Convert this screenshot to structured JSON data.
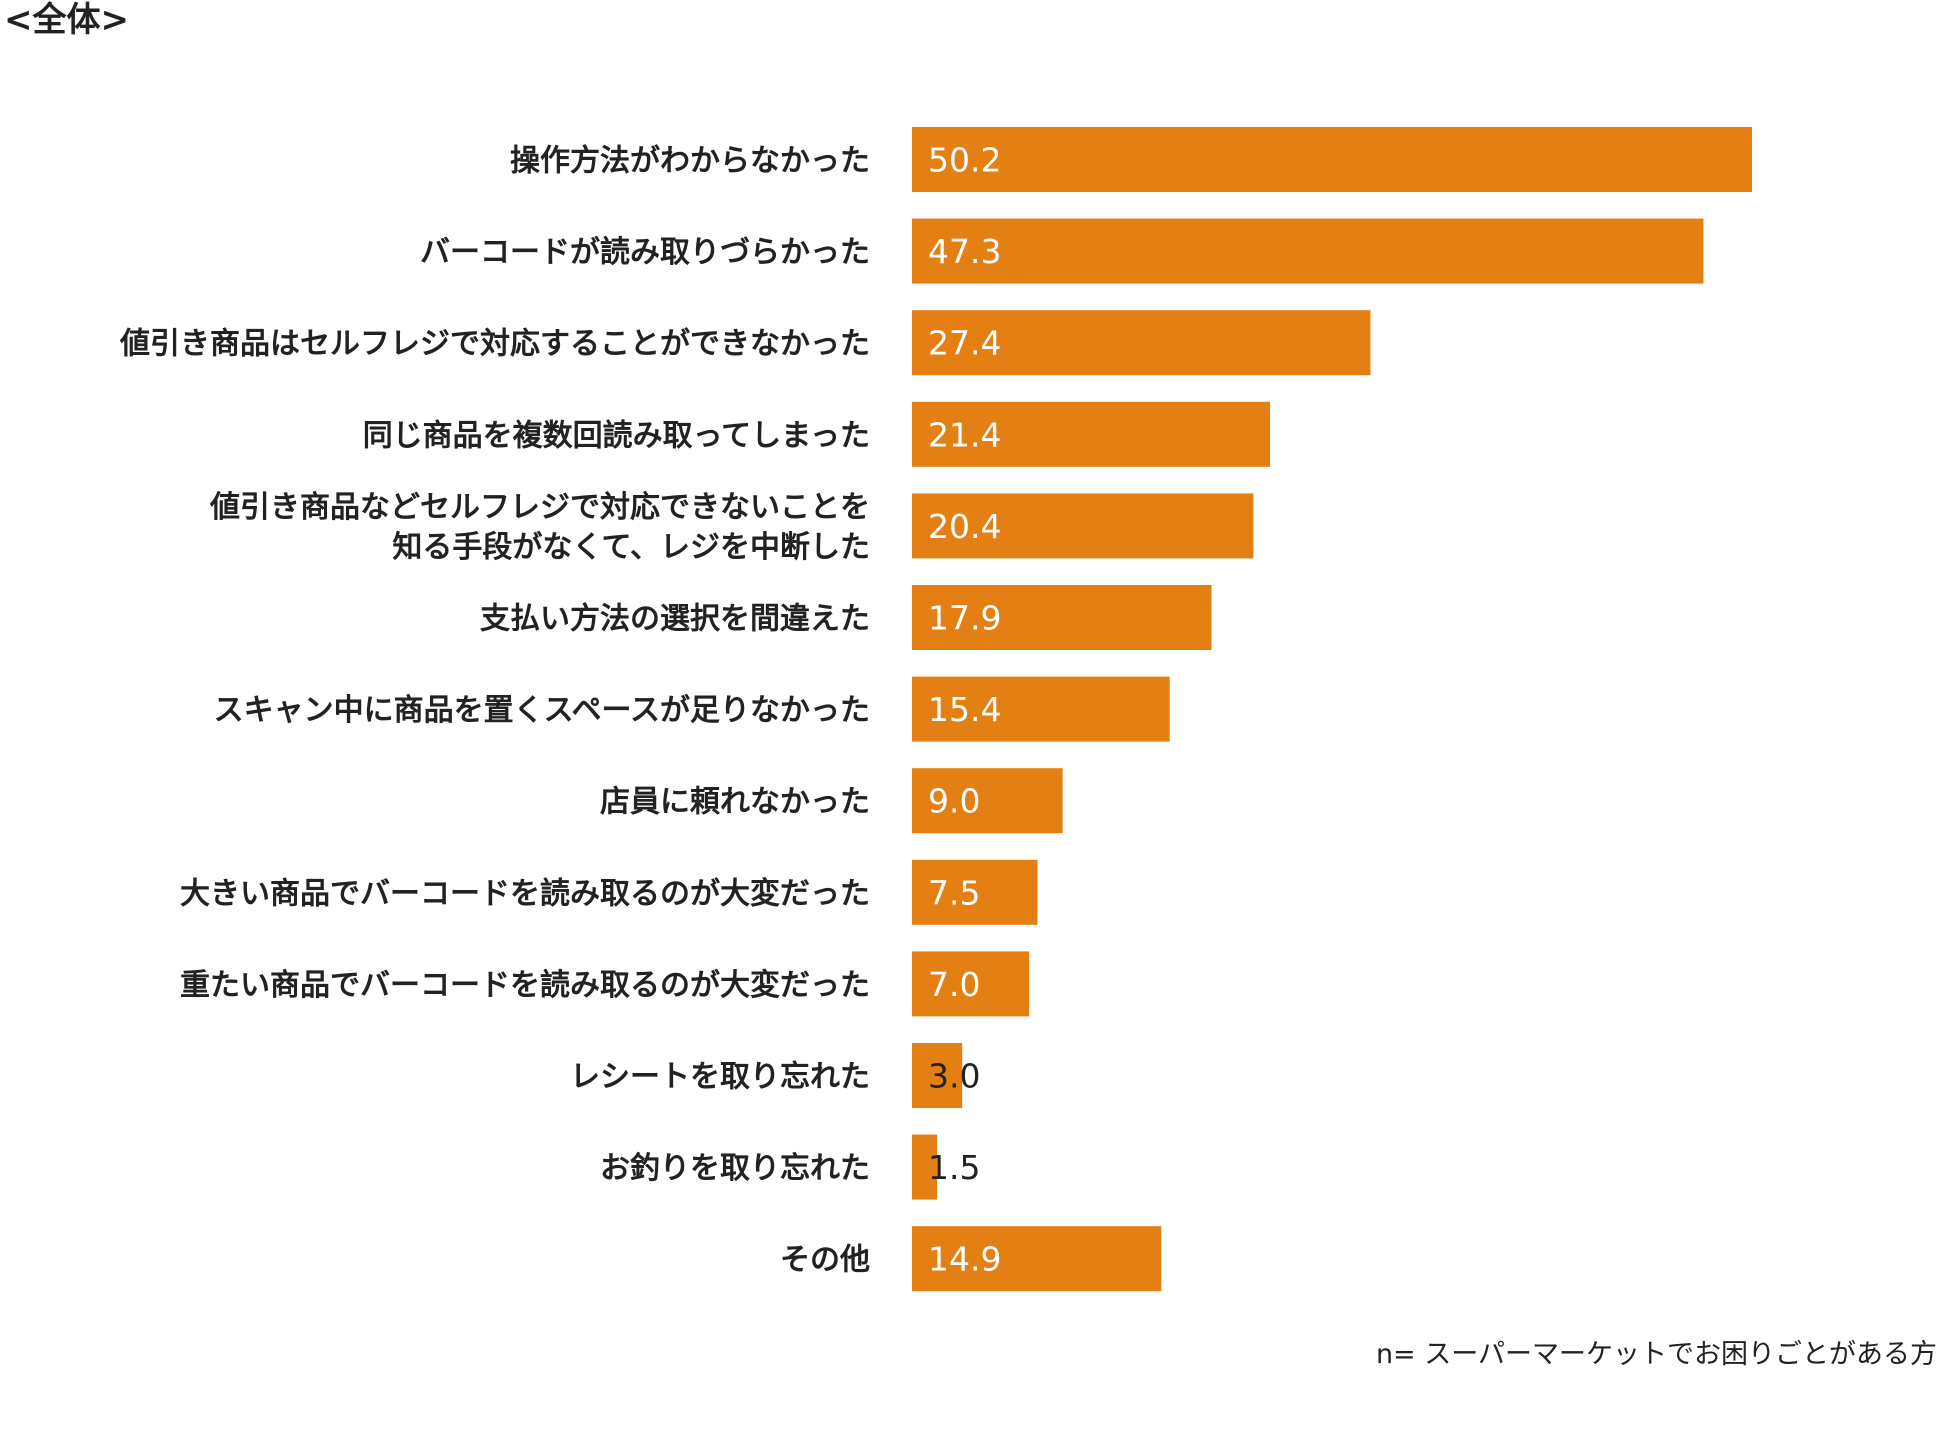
{
  "section_title": "<全体>",
  "footnote": "n= スーパーマーケットでお困りごとがある方",
  "colors": {
    "bar": "#E47F14",
    "label_inside": "#ffffff",
    "label_outside": "#222222"
  },
  "chart_data": {
    "type": "bar",
    "orientation": "horizontal",
    "categories": [
      [
        "操作方法がわからなかった"
      ],
      [
        "バーコードが読み取りづらかった"
      ],
      [
        "値引き商品はセルフレジで対応することができなかった"
      ],
      [
        "同じ商品を複数回読み取ってしまった"
      ],
      [
        "値引き商品などセルフレジで対応できないことを",
        "知る手段がなくて、レジを中断した"
      ],
      [
        "支払い方法の選択を間違えた"
      ],
      [
        "スキャン中に商品を置くスペースが足りなかった"
      ],
      [
        "店員に頼れなかった"
      ],
      [
        "大きい商品でバーコードを読み取るのが大変だった"
      ],
      [
        "重たい商品でバーコードを読み取るのが大変だった"
      ],
      [
        "レシートを取り忘れた"
      ],
      [
        "お釣りを取り忘れた"
      ],
      [
        "その他"
      ]
    ],
    "values": [
      50.2,
      47.3,
      27.4,
      21.4,
      20.4,
      17.9,
      15.4,
      9.0,
      7.5,
      7.0,
      3.0,
      1.5,
      14.9
    ],
    "value_labels": [
      "50.2",
      "47.3",
      "27.4",
      "21.4",
      "20.4",
      "17.9",
      "15.4",
      "9.0",
      "7.5",
      "7.0",
      "3.0",
      "1.5",
      "14.9"
    ],
    "xlim": [
      0,
      50.2
    ],
    "grid": false,
    "legend": "none"
  }
}
